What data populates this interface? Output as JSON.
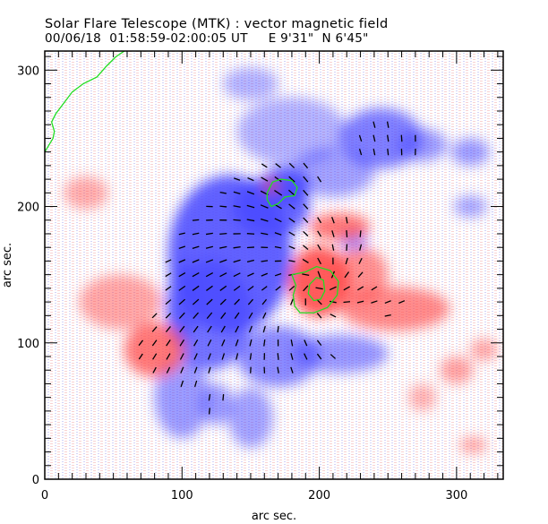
{
  "header": {
    "title": "Solar Flare Telescope (MTK) : vector magnetic field",
    "subtitle": "00/06/18  01:58:59-02:00:05 UT     E 9'31\"  N 6'45\""
  },
  "colors": {
    "positive_polarity": "#ff4a4a",
    "negative_polarity": "#4a4aff",
    "contour": "#22dd22",
    "vector": "#000000",
    "background": "#ffffff"
  },
  "chart_data": {
    "type": "heatmap",
    "title": "Solar Flare Telescope (MTK) : vector magnetic field",
    "xlabel": "arc sec.",
    "ylabel": "arc sec.",
    "xlim": [
      0,
      334
    ],
    "ylim": [
      0,
      314
    ],
    "xticks": [
      0,
      100,
      200,
      300
    ],
    "yticks": [
      0,
      100,
      200,
      300
    ],
    "x_minor_step": 10,
    "y_minor_step": 10,
    "legend": "none",
    "grid": false,
    "blobs": [
      {
        "polarity": "negative",
        "x": 135,
        "y": 165,
        "rx": 45,
        "ry": 58,
        "strength": 0.95
      },
      {
        "polarity": "negative",
        "x": 165,
        "y": 200,
        "rx": 28,
        "ry": 22,
        "strength": 0.9
      },
      {
        "polarity": "negative",
        "x": 120,
        "y": 120,
        "rx": 30,
        "ry": 40,
        "strength": 0.8
      },
      {
        "polarity": "negative",
        "x": 175,
        "y": 215,
        "rx": 18,
        "ry": 14,
        "strength": 1.0
      },
      {
        "polarity": "negative",
        "x": 245,
        "y": 250,
        "rx": 30,
        "ry": 22,
        "strength": 0.7
      },
      {
        "polarity": "negative",
        "x": 275,
        "y": 245,
        "rx": 18,
        "ry": 12,
        "strength": 0.45
      },
      {
        "polarity": "negative",
        "x": 310,
        "y": 240,
        "rx": 14,
        "ry": 10,
        "strength": 0.45
      },
      {
        "polarity": "negative",
        "x": 210,
        "y": 225,
        "rx": 30,
        "ry": 18,
        "strength": 0.4
      },
      {
        "polarity": "negative",
        "x": 170,
        "y": 90,
        "rx": 30,
        "ry": 22,
        "strength": 0.6
      },
      {
        "polarity": "negative",
        "x": 215,
        "y": 92,
        "rx": 35,
        "ry": 14,
        "strength": 0.5
      },
      {
        "polarity": "negative",
        "x": 100,
        "y": 60,
        "rx": 20,
        "ry": 30,
        "strength": 0.45
      },
      {
        "polarity": "negative",
        "x": 150,
        "y": 45,
        "rx": 16,
        "ry": 22,
        "strength": 0.4
      },
      {
        "polarity": "negative",
        "x": 100,
        "y": 130,
        "rx": 12,
        "ry": 30,
        "strength": 0.5
      },
      {
        "polarity": "negative",
        "x": 150,
        "y": 290,
        "rx": 20,
        "ry": 12,
        "strength": 0.25
      },
      {
        "polarity": "negative",
        "x": 180,
        "y": 255,
        "rx": 40,
        "ry": 25,
        "strength": 0.25
      },
      {
        "polarity": "negative",
        "x": 225,
        "y": 175,
        "rx": 10,
        "ry": 8,
        "strength": 0.5
      },
      {
        "polarity": "negative",
        "x": 310,
        "y": 200,
        "rx": 12,
        "ry": 8,
        "strength": 0.35
      },
      {
        "polarity": "negative",
        "x": 125,
        "y": 55,
        "rx": 12,
        "ry": 15,
        "strength": 0.45
      },
      {
        "polarity": "positive",
        "x": 200,
        "y": 145,
        "rx": 22,
        "ry": 26,
        "strength": 1.0
      },
      {
        "polarity": "positive",
        "x": 215,
        "y": 185,
        "rx": 22,
        "ry": 10,
        "strength": 0.75
      },
      {
        "polarity": "positive",
        "x": 255,
        "y": 125,
        "rx": 40,
        "ry": 16,
        "strength": 0.6
      },
      {
        "polarity": "positive",
        "x": 230,
        "y": 150,
        "rx": 20,
        "ry": 20,
        "strength": 0.55
      },
      {
        "polarity": "positive",
        "x": 80,
        "y": 95,
        "rx": 22,
        "ry": 20,
        "strength": 0.75
      },
      {
        "polarity": "positive",
        "x": 55,
        "y": 130,
        "rx": 30,
        "ry": 20,
        "strength": 0.35
      },
      {
        "polarity": "positive",
        "x": 30,
        "y": 210,
        "rx": 16,
        "ry": 12,
        "strength": 0.3
      },
      {
        "polarity": "positive",
        "x": 300,
        "y": 80,
        "rx": 12,
        "ry": 10,
        "strength": 0.4
      },
      {
        "polarity": "positive",
        "x": 320,
        "y": 95,
        "rx": 10,
        "ry": 8,
        "strength": 0.35
      },
      {
        "polarity": "positive",
        "x": 312,
        "y": 25,
        "rx": 10,
        "ry": 6,
        "strength": 0.35
      },
      {
        "polarity": "positive",
        "x": 165,
        "y": 215,
        "rx": 6,
        "ry": 6,
        "strength": 0.5
      },
      {
        "polarity": "positive",
        "x": 275,
        "y": 60,
        "rx": 10,
        "ry": 10,
        "strength": 0.25
      }
    ],
    "contours": [
      {
        "name": "limb",
        "points": [
          [
            0,
            240
          ],
          [
            3,
            245
          ],
          [
            6,
            250
          ],
          [
            7,
            255
          ],
          [
            5,
            262
          ],
          [
            8,
            268
          ],
          [
            14,
            276
          ],
          [
            20,
            284
          ],
          [
            28,
            290
          ],
          [
            38,
            295
          ],
          [
            45,
            303
          ],
          [
            52,
            310
          ],
          [
            58,
            314
          ]
        ]
      },
      {
        "name": "neg-core",
        "points": [
          [
            162,
            210
          ],
          [
            166,
            218
          ],
          [
            172,
            220
          ],
          [
            180,
            219
          ],
          [
            184,
            214
          ],
          [
            182,
            208
          ],
          [
            175,
            207
          ],
          [
            170,
            202
          ],
          [
            165,
            200
          ],
          [
            162,
            205
          ],
          [
            162,
            210
          ]
        ]
      },
      {
        "name": "pos-outer",
        "points": [
          [
            180,
            150
          ],
          [
            190,
            152
          ],
          [
            198,
            156
          ],
          [
            208,
            153
          ],
          [
            214,
            145
          ],
          [
            213,
            135
          ],
          [
            206,
            126
          ],
          [
            196,
            122
          ],
          [
            186,
            122
          ],
          [
            182,
            127
          ],
          [
            181,
            135
          ],
          [
            183,
            142
          ],
          [
            180,
            150
          ]
        ]
      },
      {
        "name": "pos-inner",
        "points": [
          [
            193,
            143
          ],
          [
            198,
            148
          ],
          [
            203,
            146
          ],
          [
            204,
            138
          ],
          [
            201,
            132
          ],
          [
            196,
            131
          ],
          [
            192,
            136
          ],
          [
            193,
            143
          ]
        ]
      }
    ]
  }
}
